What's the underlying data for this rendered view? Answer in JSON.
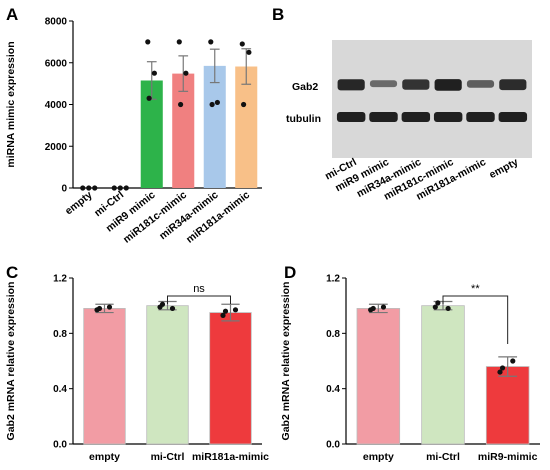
{
  "panels": {
    "a": "A",
    "b": "B",
    "c": "C",
    "d": "D"
  },
  "chart_data": [
    {
      "id": "A",
      "type": "bar",
      "ylabel": "miRNA mimic expression",
      "ylim": [
        0,
        8000
      ],
      "yticks": [
        0,
        2000,
        4000,
        6000,
        8000
      ],
      "categories": [
        "empty",
        "mi-Ctrl",
        "miR9 mimic",
        "miR181c-mimic",
        "miR34a-mimic",
        "miR181a-mimic"
      ],
      "values": [
        0,
        0,
        5150,
        5480,
        5850,
        5820
      ],
      "errors": [
        0,
        0,
        900,
        850,
        800,
        850
      ],
      "points": [
        [
          0,
          0,
          0
        ],
        [
          0,
          0,
          0
        ],
        [
          7000,
          4300,
          5500
        ],
        [
          7000,
          4000,
          5500
        ],
        [
          7000,
          4000,
          4100
        ],
        [
          6900,
          4000,
          6500
        ]
      ],
      "colors": [
        "#ffffff",
        "#ffffff",
        "#2db34a",
        "#f08080",
        "#a8c8ea",
        "#f8c088"
      ]
    },
    {
      "id": "C",
      "type": "bar",
      "ylabel": "Gab2 mRNA relative expression",
      "ylim": [
        0,
        1.2
      ],
      "yticks": [
        "0.0",
        "0.4",
        "0.8",
        "1.2"
      ],
      "categories": [
        "empty",
        "mi-Ctrl",
        "miR181a-mimic"
      ],
      "values": [
        0.98,
        1.0,
        0.95
      ],
      "errors": [
        0.03,
        0.03,
        0.06
      ],
      "points": [
        [
          0.97,
          0.98,
          0.99
        ],
        [
          0.99,
          1.01,
          0.98
        ],
        [
          0.93,
          0.96,
          0.97
        ]
      ],
      "colors": [
        "#f29ca4",
        "#cfe6c0",
        "#ee3a3d"
      ],
      "significance": {
        "from": 1,
        "to": 2,
        "label": "ns"
      }
    },
    {
      "id": "D",
      "type": "bar",
      "ylabel": "Gab2 mRNA relative expression",
      "ylim": [
        0,
        1.2
      ],
      "yticks": [
        "0.0",
        "0.4",
        "0.8",
        "1.2"
      ],
      "categories": [
        "empty",
        "mi-Ctrl",
        "miR9-mimic"
      ],
      "values": [
        0.98,
        1.0,
        0.56
      ],
      "errors": [
        0.03,
        0.03,
        0.07
      ],
      "points": [
        [
          0.97,
          0.98,
          0.99
        ],
        [
          0.99,
          1.02,
          0.98
        ],
        [
          0.52,
          0.55,
          0.6
        ]
      ],
      "colors": [
        "#f29ca4",
        "#cfe6c0",
        "#ee3a3d"
      ],
      "significance": {
        "from": 1,
        "to": 2,
        "label": "**"
      }
    }
  ],
  "blot": {
    "rows": [
      "Gab2",
      "tubulin"
    ],
    "lanes": [
      "mi-Ctrl",
      "miR9 mimic",
      "miR34a-mimic",
      "miR181c-mimic",
      "miR181a-mimic",
      "empty"
    ],
    "gab2_intensity": [
      0.9,
      0.35,
      0.8,
      0.95,
      0.45,
      0.85
    ],
    "tubulin_intensity": [
      0.95,
      0.95,
      0.95,
      0.95,
      0.95,
      0.95
    ]
  }
}
